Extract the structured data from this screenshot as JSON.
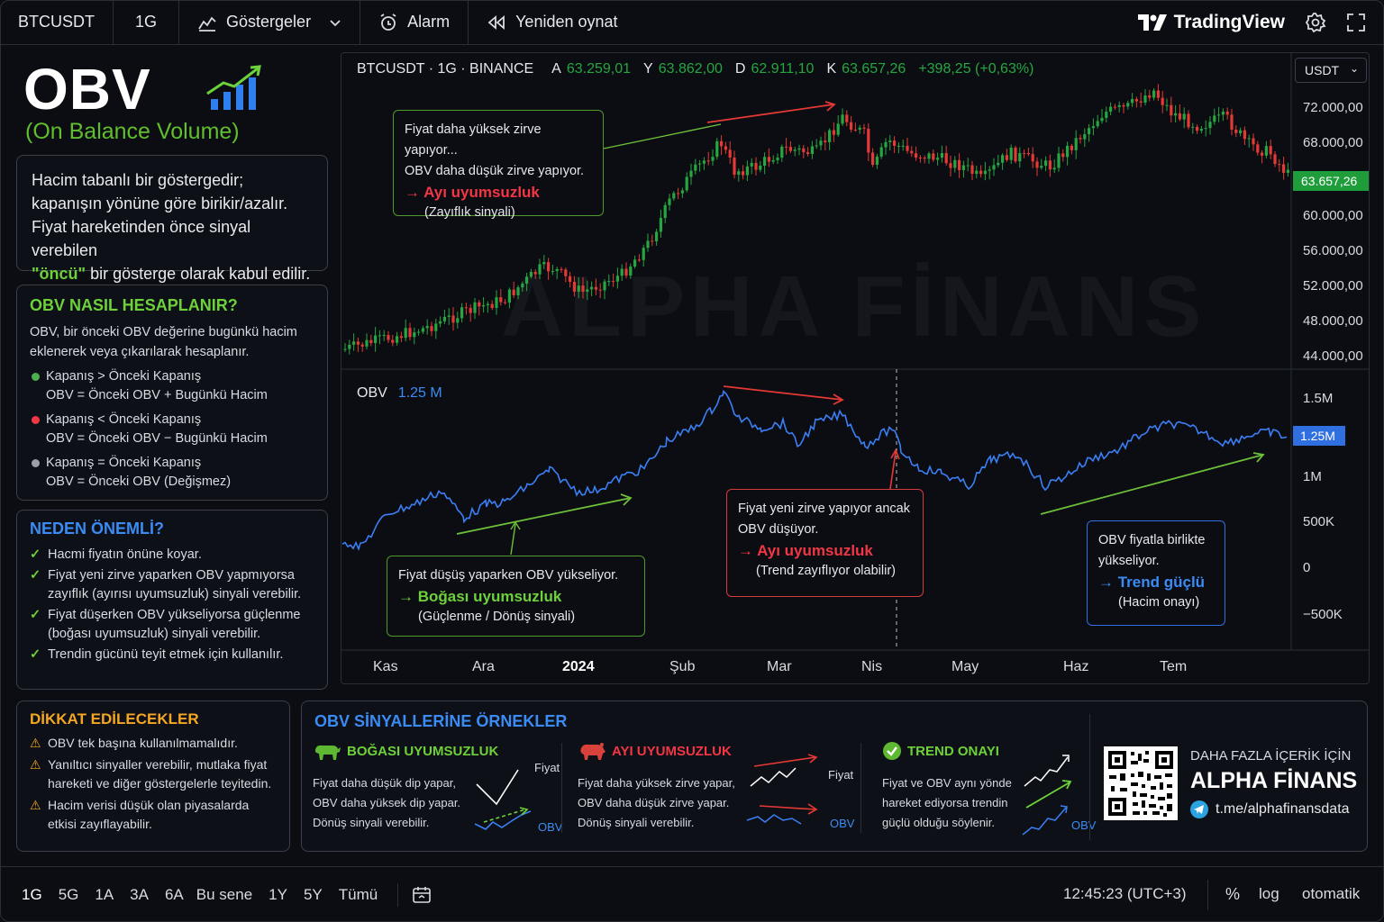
{
  "topbar": {
    "symbol": "BTCUSDT",
    "interval": "1G",
    "indicators_label": "Göstergeler",
    "alarm_label": "Alarm",
    "replay_label": "Yeniden oynat",
    "brand": "TradingView"
  },
  "left": {
    "title": "OBV",
    "subtitle": "(On Balance Volume)",
    "desc_l1": "Hacim tabanlı bir göstergedir;",
    "desc_l2": "kapanışın yönüne göre birikir/azalır.",
    "desc_l3": "Fiyat hareketinden önce sinyal verebilen",
    "desc_hl": "\"öncü\"",
    "desc_l4": " bir gösterge olarak kabul edilir.",
    "calc_title": "OBV NASIL HESAPLANIR?",
    "calc_intro": "OBV, bir önceki OBV değerine bugünkü hacim eklenerek veya çıkarılarak hesaplanır.",
    "rules": [
      {
        "cond": "Kapanış > Önceki Kapanış",
        "formula": "OBV = Önceki OBV + Bugünkü Hacim",
        "color": "#4caf50"
      },
      {
        "cond": "Kapanış < Önceki Kapanış",
        "formula": "OBV = Önceki OBV − Bugünkü Hacim",
        "color": "#f23645"
      },
      {
        "cond": "Kapanış = Önceki Kapanış",
        "formula": "OBV = Önceki OBV (Değişmez)",
        "color": "#9aa0aa"
      }
    ],
    "why_title": "NEDEN ÖNEMLİ?",
    "why_items": [
      "Hacmi fiyatın önüne koyar.",
      "Fiyat yeni zirve yaparken OBV yapmıyorsa zayıflık (ayırısı uyumsuzluk) sinyali verebilir.",
      "Fiyat düşerken OBV yükseliyorsa güçlenme (boğası uyumsuzluk) sinyali verebilir.",
      "Trendin gücünü teyit etmek için kullanılır."
    ],
    "warn_title": "DİKKAT EDİLECEKLER",
    "warn_items": [
      "OBV tek başına kullanılmamalıdır.",
      "Yanıltıcı sinyaller verebilir, mutlaka fiyat hareketi ve diğer göstergelerle teyitedin.",
      "Hacim verisi düşük olan piyasalarda etkisi zayıflayabilir."
    ]
  },
  "chart": {
    "legend_symbol": "BTCUSDT · 1G · BINANCE",
    "o_label": "A",
    "o_val": "63.259,01",
    "h_label": "Y",
    "h_val": "63.862,00",
    "l_label": "D",
    "l_val": "62.911,10",
    "c_label": "K",
    "c_val": "63.657,26",
    "change": "+398,25 (+0,63%)",
    "currency": "USDT",
    "price_ticks": [
      "72.000,00",
      "68.000,00",
      "60.000,00",
      "56.000,00",
      "52.000,00",
      "48.000,00",
      "44.000,00"
    ],
    "last_price": "63.657,26",
    "obv_label": "OBV",
    "obv_value": "1.25 M",
    "obv_ticks": [
      "1.5M",
      "1M",
      "500K",
      "0",
      "−500K"
    ],
    "obv_tag": "1.25M",
    "months": [
      "Kas",
      "Ara",
      "2024",
      "Şub",
      "Mar",
      "Nis",
      "May",
      "Haz",
      "Tem"
    ],
    "watermark": "ALPHA FİNANS",
    "up_color": "#26a641",
    "down_color": "#e53935",
    "obv_color": "#3b7ff5"
  },
  "annotations": {
    "a1_l1": "Fiyat daha yüksek zirve yapıyor...",
    "a1_l2": "OBV daha düşük zirve yapıyor.",
    "a1_big": "→ Ayı uyumsuzluk",
    "a1_l3": "(Zayıflık sinyali)",
    "a2_l1": "Fiyat düşüş yaparken OBV yükseliyor.",
    "a2_big": "→ Boğası uyumsuzluk",
    "a2_l2": "(Güçlenme / Dönüş sinyali)",
    "a3_l1": "Fiyat yeni zirve yapıyor ancak",
    "a3_l2": "OBV düşüyor.",
    "a3_big": "→ Ayı uyumsuzluk",
    "a3_l3": "(Trend zayıflıyor olabilir)",
    "a4_l1": "OBV fiyatla birlikte",
    "a4_l2": "yükseliyor.",
    "a4_big": "→ Trend güçlü",
    "a4_l3": "(Hacim onayı)"
  },
  "examples": {
    "title": "OBV SİNYALLERİNE ÖRNEKLER",
    "bull_head": "BOĞASI UYUMSUZLUK",
    "bull_text": "Fiyat daha düşük dip yapar, OBV daha yüksek dip yapar. Dönüş sinyali verebilir.",
    "bear_head": "AYI UYUMSUZLUK",
    "bear_text": "Fiyat daha yüksek zirve yapar, OBV daha düşük zirve yapar. Dönüş sinyali verebilir.",
    "trend_head": "TREND ONAYI",
    "trend_text": "Fiyat ve OBV aynı yönde hareket ediyorsa trendin güçlü olduğu söylenir.",
    "fiyat_label": "Fiyat",
    "obv_label": "OBV",
    "promo_l1": "DAHA FAZLA İÇERİK İÇİN",
    "promo_brand": "ALPHA FİNANS",
    "promo_link": "t.me/alphafinansdata"
  },
  "bottombar": {
    "timeframes": [
      "1G",
      "5G",
      "1A",
      "3A",
      "6A",
      "Bu sene",
      "1Y",
      "5Y",
      "Tümü"
    ],
    "clock": "12:45:23 (UTC+3)",
    "percent": "%",
    "log": "log",
    "auto": "otomatik"
  }
}
